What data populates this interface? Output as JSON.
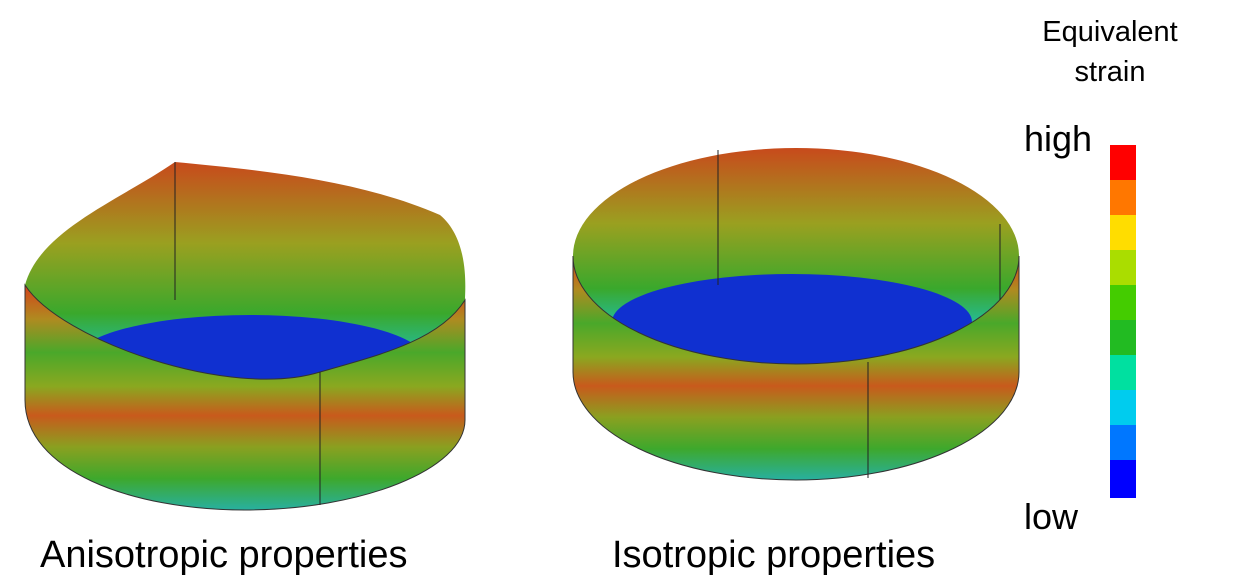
{
  "panels": [
    {
      "label": "Anisotropic properties"
    },
    {
      "label": "Isotropic properties"
    }
  ],
  "legend": {
    "title": "Equivalent strain",
    "high": "high",
    "low": "low"
  }
}
